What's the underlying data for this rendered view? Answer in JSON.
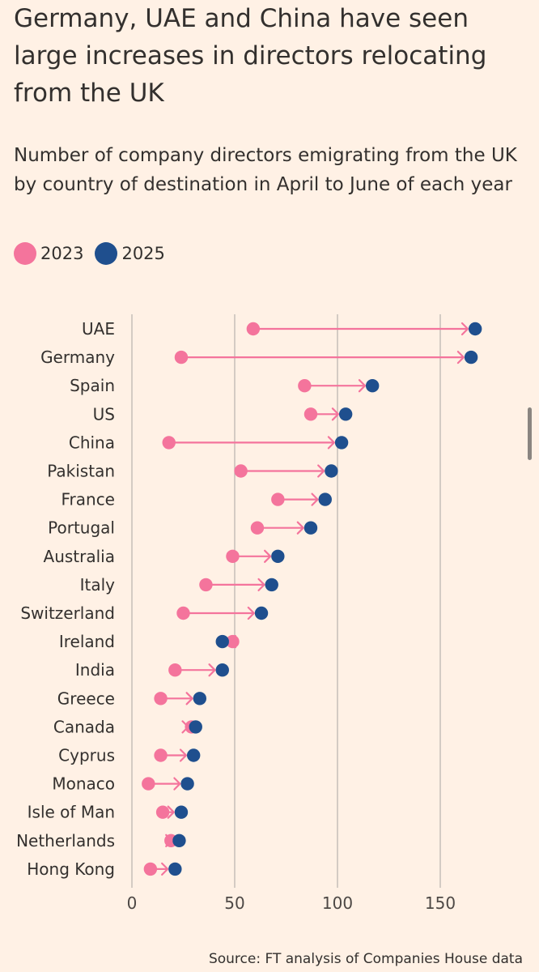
{
  "title": "Germany, UAE and China have seen large increases in directors relocating from the UK",
  "subtitle": "Number of company directors emigrating from the UK by country of destination in April to June of each year",
  "source": "Source: FT analysis of Companies House data",
  "colors": {
    "y2023": "#f4749c",
    "y2025": "#1f4f8e",
    "background": "#fff1e5",
    "gridline": "#b7b2ad"
  },
  "chart_data": {
    "type": "dumbbell",
    "legend": [
      {
        "name": "2023",
        "color": "#f4749c"
      },
      {
        "name": "2025",
        "color": "#1f4f8e"
      }
    ],
    "categories": [
      "UAE",
      "Germany",
      "Spain",
      "US",
      "China",
      "Pakistan",
      "France",
      "Portugal",
      "Australia",
      "Italy",
      "Switzerland",
      "Ireland",
      "India",
      "Greece",
      "Canada",
      "Cyprus",
      "Monaco",
      "Isle of Man",
      "Netherlands",
      "Hong Kong"
    ],
    "series": [
      {
        "name": "2023",
        "values": [
          59,
          24,
          84,
          87,
          18,
          53,
          71,
          61,
          49,
          36,
          25,
          49,
          21,
          14,
          29,
          14,
          8,
          15,
          19,
          9
        ]
      },
      {
        "name": "2025",
        "values": [
          167,
          165,
          117,
          104,
          102,
          97,
          94,
          87,
          71,
          68,
          63,
          44,
          44,
          33,
          31,
          30,
          27,
          24,
          23,
          21
        ]
      }
    ],
    "xlim": [
      0,
      167
    ],
    "xticks": [
      0,
      50,
      100,
      150
    ],
    "xtick_labels": [
      "0",
      "50",
      "100",
      "150"
    ],
    "grid": "vertical"
  }
}
